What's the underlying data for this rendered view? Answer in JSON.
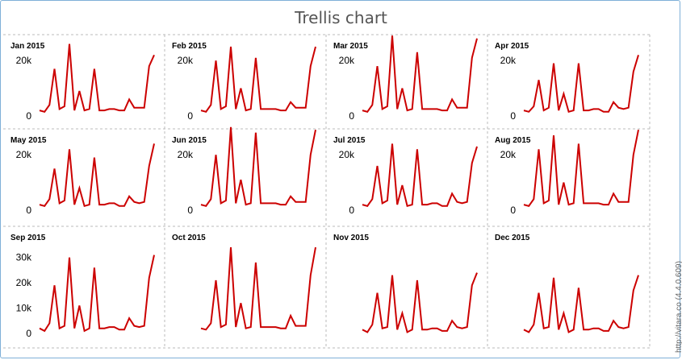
{
  "title": "Trellis chart",
  "credit": "http://vitara.co   (4.4.0.609)",
  "chart_data": [
    {
      "type": "line",
      "title": "Jan 2015",
      "ylim": [
        0,
        25000
      ],
      "ticks": [
        "0",
        "20k"
      ],
      "color": "#cc0000",
      "values": [
        2000,
        1500,
        4000,
        17000,
        2500,
        3500,
        26000,
        2000,
        9000,
        2000,
        2500,
        17000,
        2000,
        2000,
        2500,
        2500,
        2000,
        2000,
        6000,
        3000,
        3000,
        3000,
        18000,
        22000
      ]
    },
    {
      "type": "line",
      "title": "Feb 2015",
      "ylim": [
        0,
        25000
      ],
      "ticks": [
        "0",
        "20k"
      ],
      "color": "#cc0000",
      "values": [
        2000,
        1500,
        4000,
        20000,
        2500,
        3500,
        25000,
        2500,
        10000,
        2000,
        2500,
        21000,
        2500,
        2500,
        2500,
        2500,
        2000,
        2000,
        5000,
        3000,
        3000,
        3000,
        18000,
        25000
      ]
    },
    {
      "type": "line",
      "title": "Mar 2015",
      "ylim": [
        0,
        25000
      ],
      "ticks": [
        "0",
        "20k"
      ],
      "color": "#cc0000",
      "values": [
        2000,
        1500,
        4000,
        18000,
        2500,
        3500,
        29000,
        2500,
        10000,
        2000,
        2500,
        23000,
        2500,
        2500,
        2500,
        2500,
        2000,
        2000,
        6000,
        3000,
        3000,
        3000,
        21000,
        28000
      ]
    },
    {
      "type": "line",
      "title": "Apr 2015",
      "ylim": [
        0,
        25000
      ],
      "ticks": [
        "0",
        "20k"
      ],
      "color": "#cc0000",
      "values": [
        2000,
        1500,
        3500,
        13000,
        2000,
        3000,
        19000,
        2000,
        8000,
        1500,
        2000,
        19000,
        2000,
        2000,
        2500,
        2500,
        1500,
        1500,
        5000,
        3000,
        2500,
        3000,
        16000,
        22000
      ]
    },
    {
      "type": "line",
      "title": "May 2015",
      "ylim": [
        0,
        25000
      ],
      "ticks": [
        "0",
        "20k"
      ],
      "color": "#cc0000",
      "values": [
        2000,
        1500,
        4000,
        15000,
        2500,
        3500,
        22000,
        2000,
        8000,
        1500,
        2000,
        19000,
        2000,
        2000,
        2500,
        2500,
        1500,
        1500,
        5000,
        3000,
        2500,
        3000,
        16000,
        24000
      ]
    },
    {
      "type": "line",
      "title": "Jun 2015",
      "ylim": [
        0,
        25000
      ],
      "ticks": [
        "0",
        "20k"
      ],
      "color": "#cc0000",
      "values": [
        2000,
        1500,
        4000,
        20000,
        2500,
        3500,
        30000,
        2500,
        11000,
        2000,
        2500,
        28000,
        2500,
        2500,
        2500,
        2500,
        2000,
        2000,
        5000,
        3000,
        3000,
        3000,
        20000,
        29000
      ]
    },
    {
      "type": "line",
      "title": "Jul 2015",
      "ylim": [
        0,
        25000
      ],
      "ticks": [
        "0",
        "20k"
      ],
      "color": "#cc0000",
      "values": [
        2000,
        1500,
        4000,
        16000,
        2500,
        3500,
        24000,
        2000,
        9000,
        1500,
        2000,
        22000,
        2000,
        2000,
        2500,
        2500,
        1500,
        1500,
        6000,
        3000,
        2500,
        3000,
        17000,
        23000
      ]
    },
    {
      "type": "line",
      "title": "Aug 2015",
      "ylim": [
        0,
        25000
      ],
      "ticks": [
        "0",
        "20k"
      ],
      "color": "#cc0000",
      "values": [
        2000,
        1500,
        4000,
        22000,
        2500,
        3500,
        27000,
        2000,
        10000,
        2000,
        2500,
        24000,
        2500,
        2500,
        2500,
        2500,
        2000,
        2000,
        6000,
        3000,
        3000,
        3000,
        20000,
        29000
      ]
    },
    {
      "type": "line",
      "title": "Sep 2015",
      "ylim": [
        0,
        35000
      ],
      "ticks": [
        "0",
        "10k",
        "20k",
        "30k"
      ],
      "color": "#cc0000",
      "values": [
        2000,
        1000,
        4000,
        19000,
        2000,
        3000,
        30000,
        2000,
        11000,
        1000,
        2000,
        26000,
        2000,
        2000,
        2500,
        2500,
        1500,
        1500,
        6000,
        3000,
        2500,
        3000,
        22000,
        31000
      ]
    },
    {
      "type": "line",
      "title": "Oct 2015",
      "ylim": [
        0,
        35000
      ],
      "ticks": [],
      "color": "#cc0000",
      "values": [
        2000,
        1500,
        4000,
        21000,
        2500,
        3500,
        34000,
        2500,
        12000,
        2000,
        2500,
        28000,
        2500,
        2500,
        2500,
        2500,
        2000,
        2000,
        7000,
        3000,
        3000,
        3000,
        23000,
        34000
      ]
    },
    {
      "type": "line",
      "title": "Nov 2015",
      "ylim": [
        0,
        35000
      ],
      "ticks": [],
      "color": "#cc0000",
      "values": [
        1500,
        500,
        3500,
        16000,
        2000,
        2500,
        23000,
        1500,
        8000,
        500,
        1500,
        21000,
        1500,
        1500,
        2000,
        2000,
        1000,
        1000,
        5000,
        2500,
        2000,
        2500,
        19000,
        24000
      ]
    },
    {
      "type": "line",
      "title": "Dec 2015",
      "ylim": [
        0,
        35000
      ],
      "ticks": [],
      "color": "#cc0000",
      "values": [
        1500,
        500,
        3500,
        16000,
        2000,
        2500,
        22000,
        1500,
        8000,
        500,
        1500,
        18000,
        1500,
        1500,
        2000,
        2000,
        1000,
        1000,
        5000,
        2500,
        2000,
        2500,
        17000,
        23000
      ]
    }
  ]
}
